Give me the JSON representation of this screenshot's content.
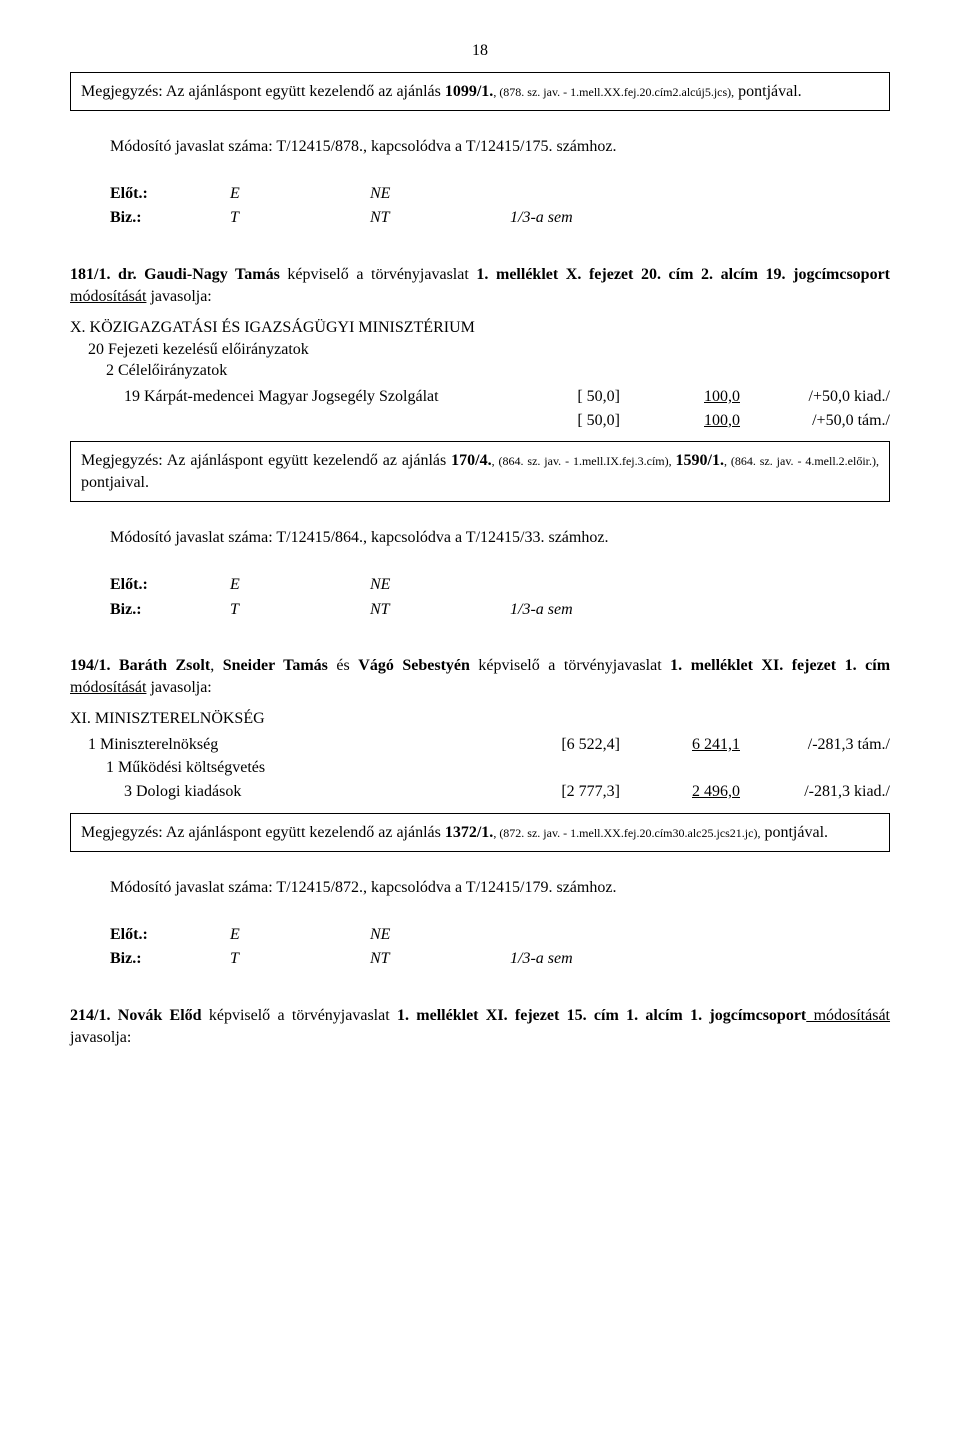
{
  "page_number": "18",
  "note1_text_a": "Megjegyzés: Az ajánláspont együtt kezelendő az ajánlás ",
  "note1_bold": "1099/1.",
  "note1_small": ", (878. sz. jav. - 1.mell.XX.fej.20.cím2.alcúj5.jcs),",
  "note1_text_b": " pontjával.",
  "mod1": "Módosító javaslat száma: T/12415/878., kapcsolódva a T/12415/175. számhoz.",
  "vote": {
    "r1c1": "Előt.:",
    "r1c2": "E",
    "r1c3": "NE",
    "r2c1": "Biz.:",
    "r2c2": "T",
    "r2c3": "NT",
    "r2c4": "1/3-a sem"
  },
  "s1_num": "181/1. dr. Gaudi-Nagy Tamás",
  "s1_rest_a": " képviselő a törvényjavaslat ",
  "s1_rest_b": "1. melléklet X. fejezet 20. cím 2. alcím 19. jogcímcsoport",
  "s1_underline": " módosítását",
  "s1_rest_c": " javasolja:",
  "s1_body_l1": "X. KÖZIGAZGATÁSI ÉS IGAZSÁGÜGYI MINISZTÉRIUM",
  "s1_body_l2": "20  Fejezeti kezelésű előirányzatok",
  "s1_body_l3": "2  Célelőirányzatok",
  "s1_tbl": [
    {
      "label": "19  Kárpát-medencei Magyar Jogsegély Szolgálat",
      "c1": "[ 50,0]",
      "c2": "100,0",
      "c3": "/+50,0 kiad./"
    },
    {
      "label": "",
      "c1": "[ 50,0]",
      "c2": "100,0",
      "c3": "/+50,0 tám./"
    }
  ],
  "note2_text_a": "Megjegyzés: Az ajánláspont együtt kezelendő az ajánlás ",
  "note2_bold1": "170/4.",
  "note2_small1": ", (864. sz. jav. - 1.mell.IX.fej.3.cím), ",
  "note2_bold2": "1590/1.",
  "note2_small2": ", (864. sz. jav. - 4.mell.2.előir.),",
  "note2_text_b": " pontjaival.",
  "mod2": "Módosító javaslat száma: T/12415/864., kapcsolódva a T/12415/33. számhoz.",
  "s2_num": "194/1. ",
  "s2_names": "Baráth Zsolt",
  "s2_mid1": ", ",
  "s2_names2": "Sneider Tamás",
  "s2_mid2": " és ",
  "s2_names3": "Vágó Sebestyén",
  "s2_rest_a": " képviselő a törvényjavaslat ",
  "s2_rest_b": "1. melléklet XI. fejezet 1. cím",
  "s2_underline": " módosítását",
  "s2_rest_c": " javasolja:",
  "s2_body_l1": "XI. MINISZTERELNÖKSÉG",
  "s2_tbl": [
    {
      "label": "1  Miniszterelnökség",
      "c1": "[6 522,4]",
      "c2": "6 241,1",
      "c3": "/-281,3 tám./"
    },
    {
      "label": "1  Működési költségvetés",
      "c1": "",
      "c2": "",
      "c3": ""
    },
    {
      "label": "3  Dologi kiadások",
      "c1": "[2 777,3]",
      "c2": "2 496,0",
      "c3": "/-281,3 kiad./"
    }
  ],
  "note3_text_a": "Megjegyzés:  Az  ajánláspont  együtt  kezelendő  az  ajánlás  ",
  "note3_bold": "1372/1.",
  "note3_small": ",   (872.   sz.   jav.   - 1.mell.XX.fej.20.cím30.alc25.jcs21.jc),",
  "note3_text_b": " pontjával.",
  "mod3": "Módosító javaslat száma: T/12415/872., kapcsolódva a T/12415/179. számhoz.",
  "s3_num": "214/1.  Novák  Előd",
  "s3_rest_a": "  képviselő  a  törvényjavaslat  ",
  "s3_rest_b": "1.  melléklet  XI.  fejezet  15.  cím  1.  alcím  1. jogcímcsoport",
  "s3_underline": " módosítását",
  "s3_rest_c": " javasolja:"
}
